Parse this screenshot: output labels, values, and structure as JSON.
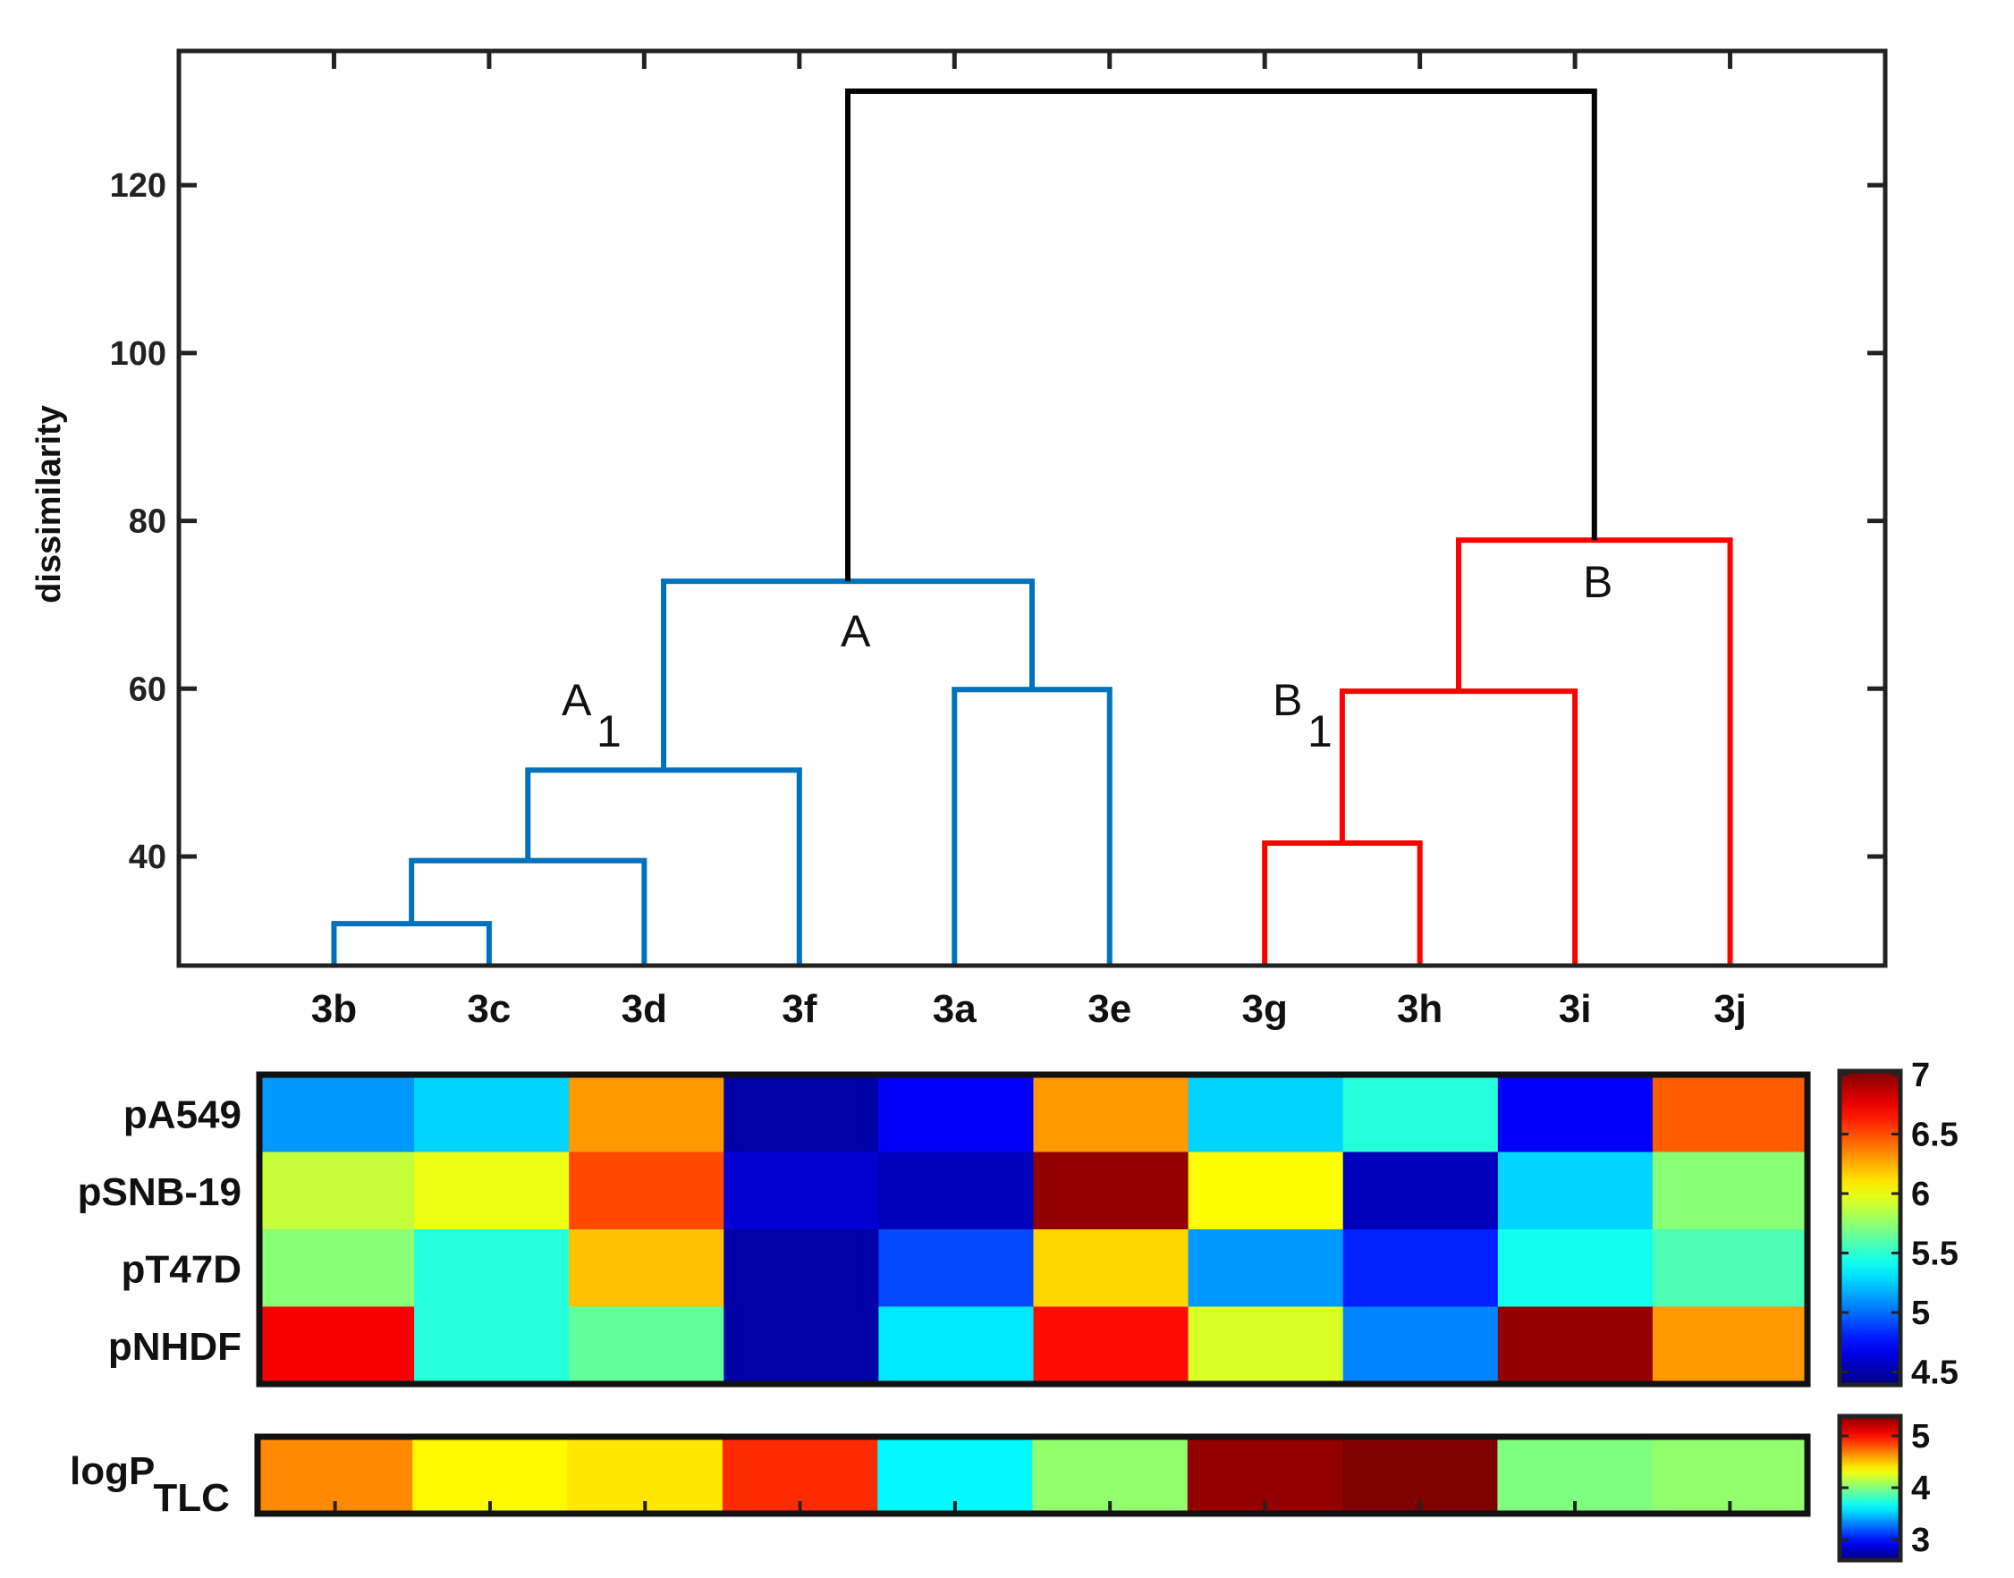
{
  "chart_data": [
    {
      "type": "dendrogram",
      "ylabel": "dissimilarity",
      "ylim": [
        27,
        136
      ],
      "yticks": [
        40,
        60,
        80,
        100,
        120
      ],
      "leaves": [
        "3b",
        "3c",
        "3d",
        "3f",
        "3a",
        "3e",
        "3g",
        "3h",
        "3i",
        "3j"
      ],
      "merges": [
        {
          "left": "3b",
          "right": "3c",
          "height": 32,
          "color": "#0072BD"
        },
        {
          "left": "(3b,3c)",
          "right": "3d",
          "height": 39.5,
          "color": "#0072BD"
        },
        {
          "left": "(3b,3c,3d)",
          "right": "3f",
          "height": 50.3,
          "color": "#0072BD"
        },
        {
          "left": "3a",
          "right": "3e",
          "height": 59.9,
          "color": "#0072BD"
        },
        {
          "left": "A1",
          "right": "(3a,3e)",
          "height": 72.8,
          "color": "#0072BD"
        },
        {
          "left": "3g",
          "right": "3h",
          "height": 41.6,
          "color": "#FF0000"
        },
        {
          "left": "(3g,3h)",
          "right": "3i",
          "height": 59.7,
          "color": "#FF0000"
        },
        {
          "left": "B1",
          "right": "3j",
          "height": 77.7,
          "color": "#FF0000"
        },
        {
          "left": "A",
          "right": "B",
          "height": 131.2,
          "color": "#000000"
        }
      ],
      "cluster_labels": [
        {
          "text": "A",
          "sub": ""
        },
        {
          "text": "A",
          "sub": "1"
        },
        {
          "text": "B",
          "sub": ""
        },
        {
          "text": "B",
          "sub": "1"
        }
      ]
    },
    {
      "type": "heatmap",
      "rows": [
        "pA549",
        "pSNB-19",
        "pT47D",
        "pNHDF"
      ],
      "columns": [
        "3b",
        "3c",
        "3d",
        "3f",
        "3a",
        "3e",
        "3g",
        "3h",
        "3i",
        "3j"
      ],
      "values": [
        [
          5.15,
          5.3,
          6.3,
          4.55,
          4.75,
          6.3,
          5.3,
          5.5,
          4.75,
          6.45
        ],
        [
          5.9,
          6.0,
          6.5,
          4.65,
          4.6,
          6.95,
          6.05,
          4.6,
          5.3,
          5.75
        ],
        [
          5.75,
          5.5,
          6.2,
          4.55,
          4.95,
          6.15,
          5.15,
          4.85,
          5.45,
          5.6
        ],
        [
          6.7,
          5.5,
          5.65,
          4.55,
          5.35,
          6.65,
          5.95,
          5.1,
          6.95,
          6.3
        ]
      ],
      "colorbar": {
        "min": 4.45,
        "max": 7.0,
        "ticks": [
          "7",
          "6.5",
          "6",
          "5.5",
          "5",
          "4.5"
        ]
      }
    },
    {
      "type": "heatmap",
      "rows": [
        "logP"
      ],
      "row_subscript": "TLC",
      "columns": [
        "3b",
        "3c",
        "3d",
        "3f",
        "3a",
        "3e",
        "3g",
        "3h",
        "3i",
        "3j"
      ],
      "values": [
        [
          4.6,
          4.3,
          4.35,
          4.85,
          3.6,
          4.0,
          5.25,
          5.3,
          3.95,
          4.0
        ]
      ],
      "colorbar": {
        "min": 2.6,
        "max": 5.3,
        "ticks": [
          "5",
          "4",
          "3"
        ]
      }
    }
  ]
}
